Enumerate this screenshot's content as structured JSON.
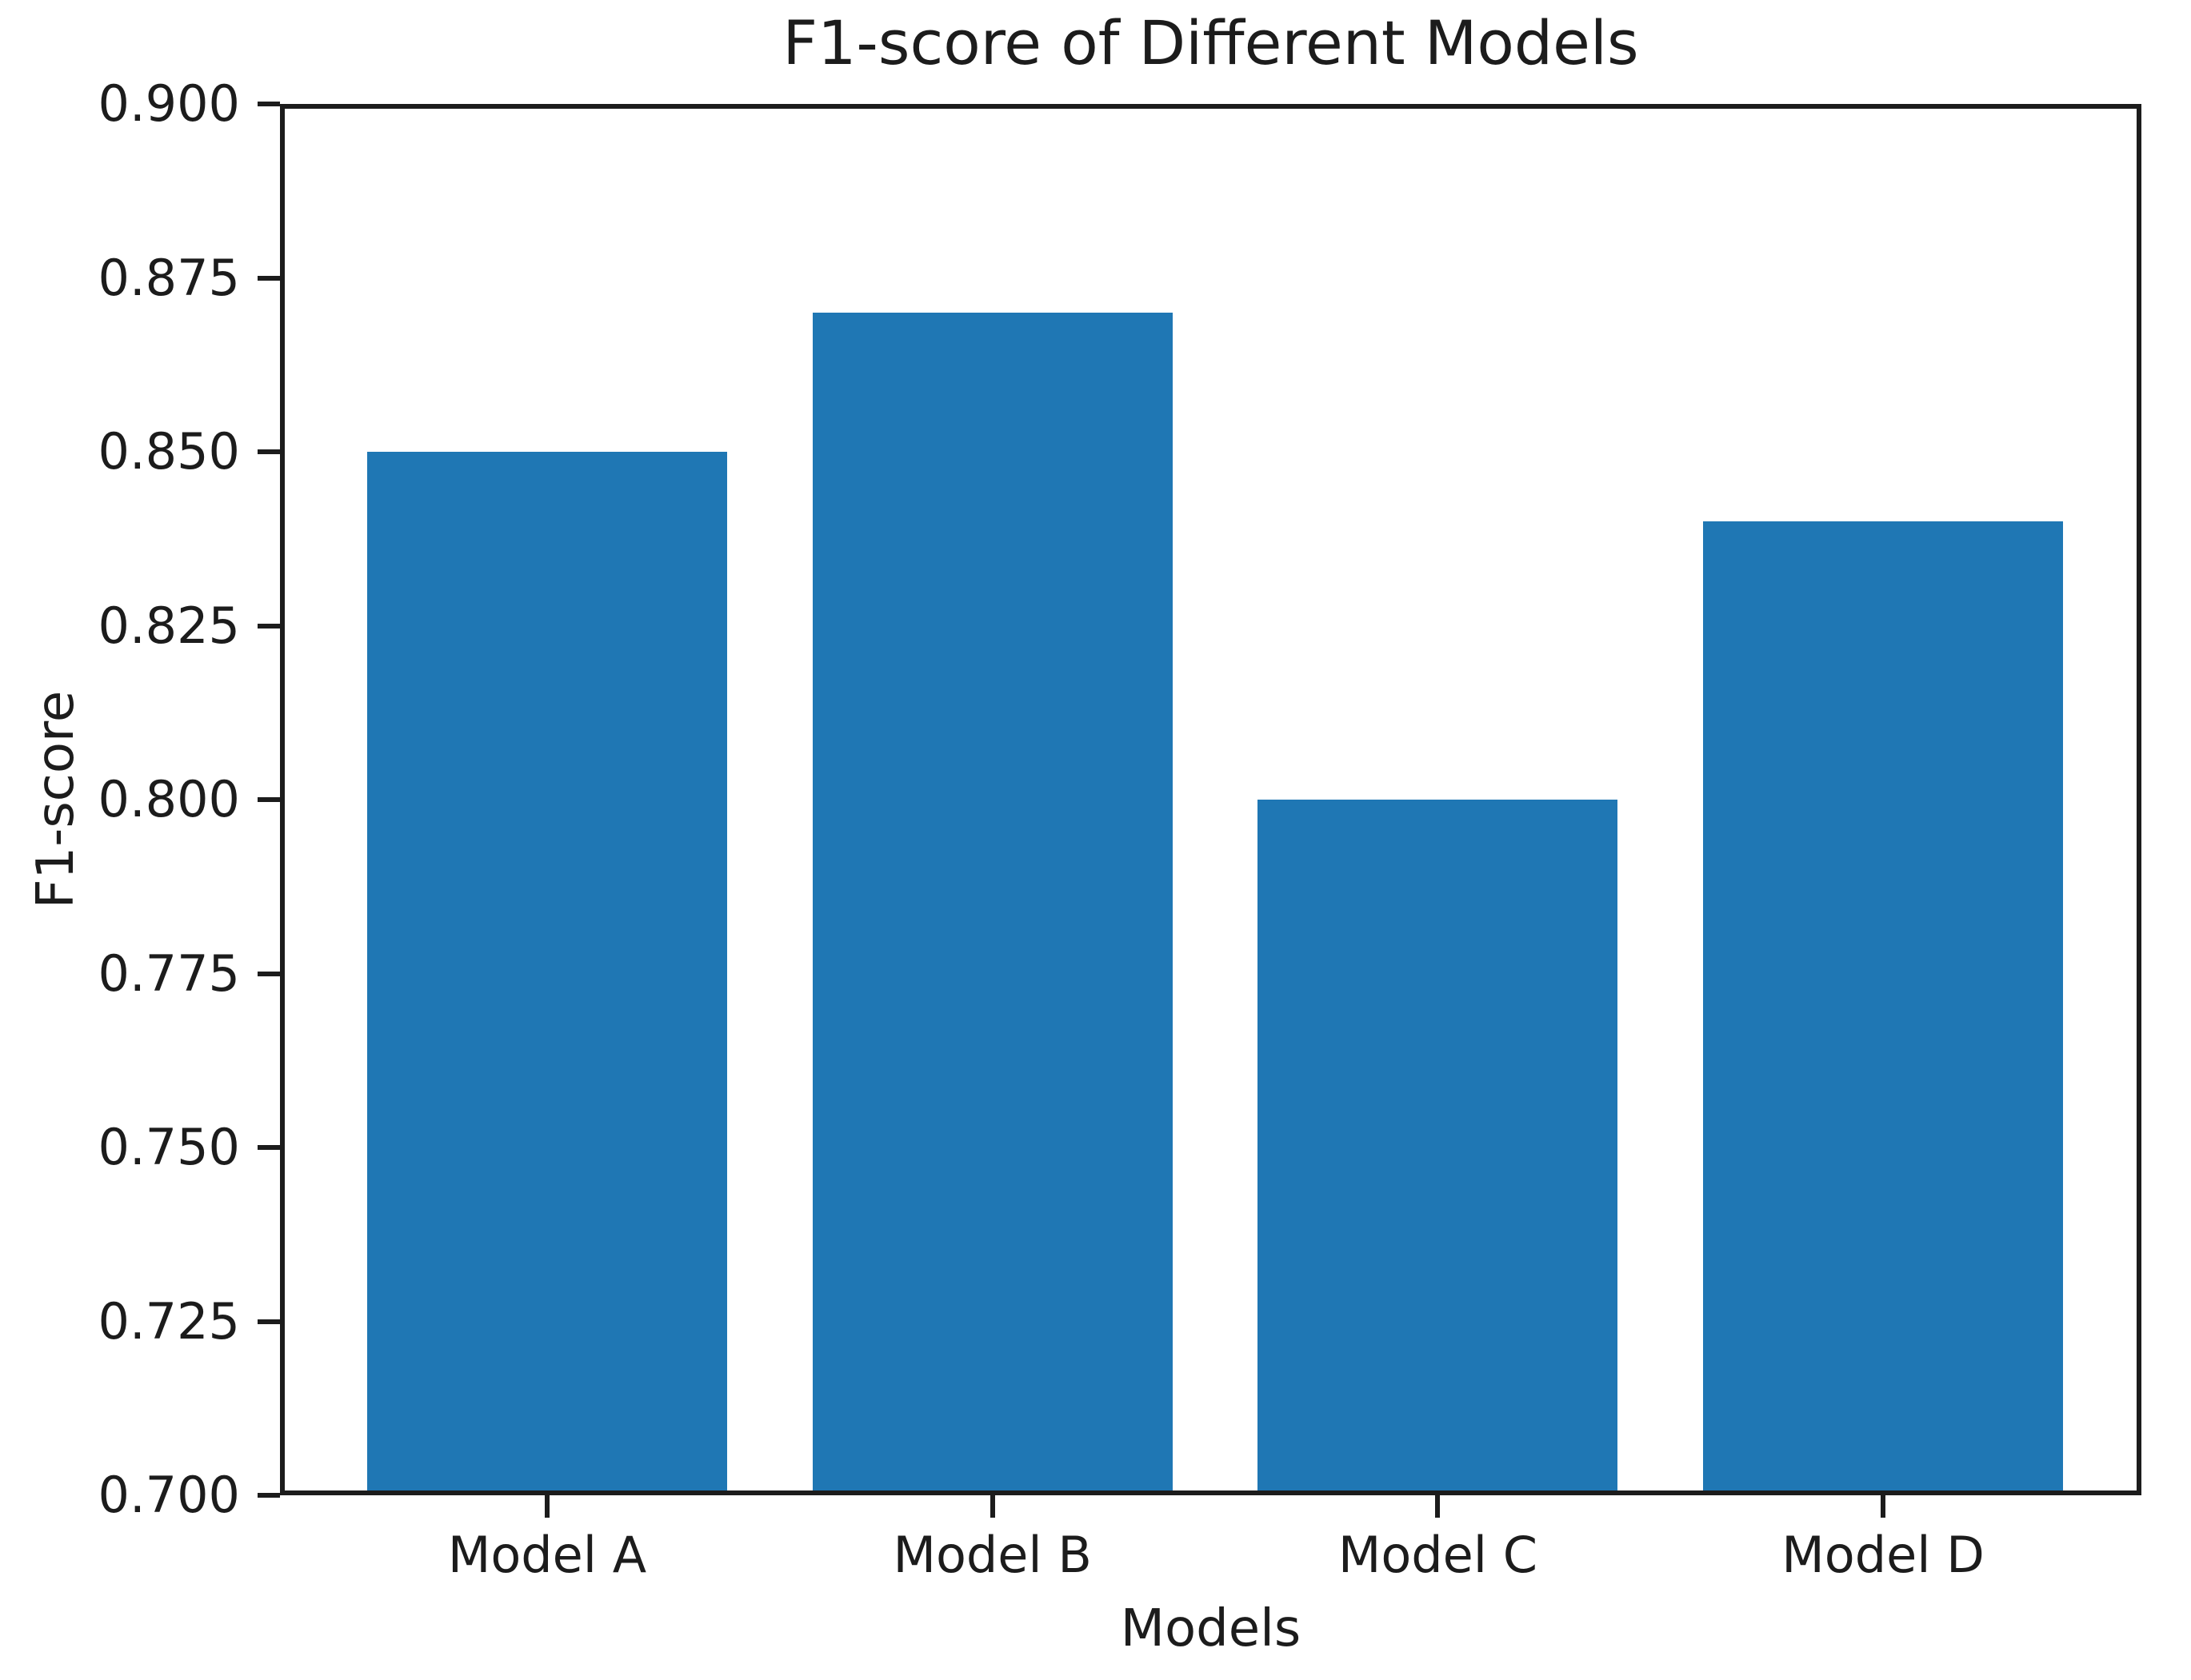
{
  "chart_data": {
    "type": "bar",
    "title": "F1-score of Different Models",
    "xlabel": "Models",
    "ylabel": "F1-score",
    "categories": [
      "Model A",
      "Model B",
      "Model C",
      "Model D"
    ],
    "values": [
      0.85,
      0.87,
      0.8,
      0.84
    ],
    "ylim": [
      0.7,
      0.9
    ],
    "ytick_step": 0.025,
    "ytick_labels": [
      "0.900",
      "0.875",
      "0.850",
      "0.825",
      "0.800",
      "0.775",
      "0.750",
      "0.725",
      "0.700"
    ],
    "bar_color": "#1f77b4",
    "spine_color": "#1c1c1c",
    "grid": "off",
    "legend": "none"
  }
}
